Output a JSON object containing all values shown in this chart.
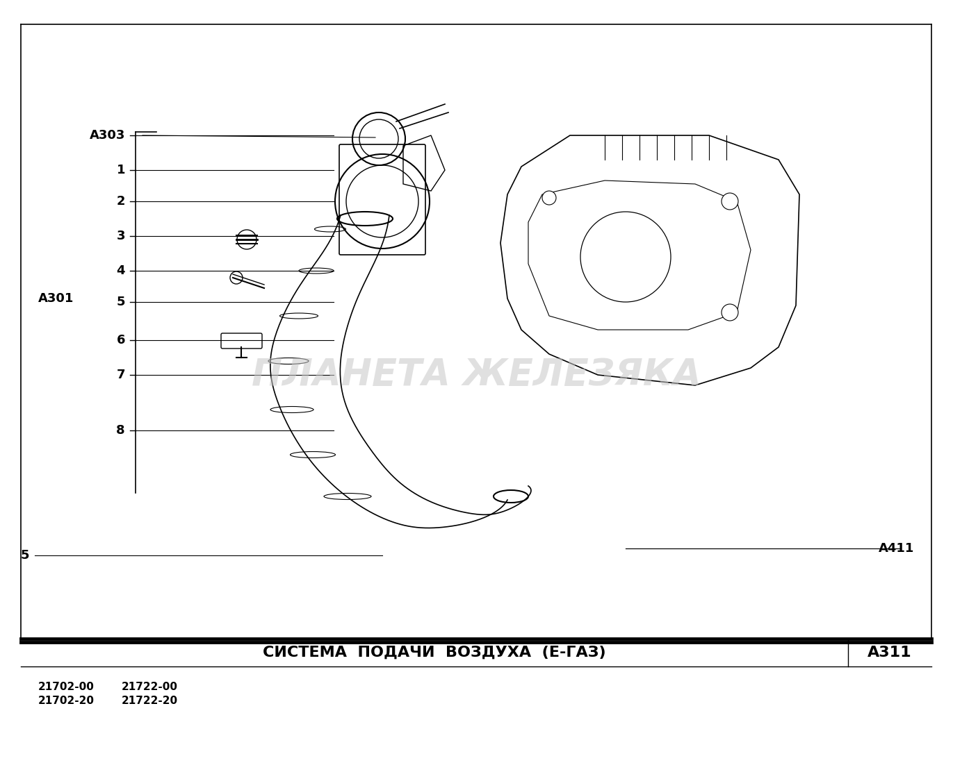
{
  "bg_color": "#ffffff",
  "title": "СИСТЕМА  ПОДАЧИ  ВОЗДУХА  (Е-ГАЗ)",
  "code": "А311",
  "models_left": [
    "21702-00",
    "21702-20"
  ],
  "models_right": [
    "21722-00",
    "21722-20"
  ],
  "watermark": "ПЛАНЕТА ЖЕЛЕЗЯКА",
  "labels_left": [
    "А303",
    "1",
    "2",
    "3",
    "4",
    "5",
    "6",
    "7",
    "8"
  ],
  "label_A301": "А301",
  "label_A411": "А411",
  "label_5_bottom": "5",
  "footer_line1_lw": 3.5,
  "footer_line2_lw": 1.0
}
